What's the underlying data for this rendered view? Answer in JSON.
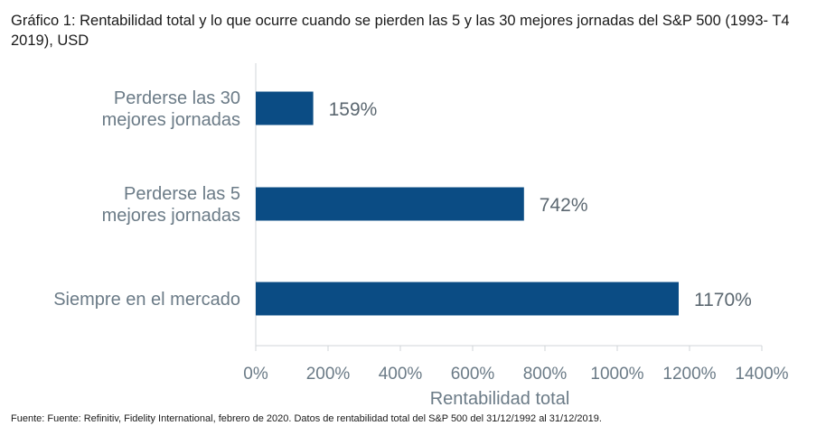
{
  "chart_data": {
    "type": "bar",
    "orientation": "horizontal",
    "title": "Gráfico 1: Rentabilidad total y lo que ocurre cuando se pierden las 5 y las 30 mejores jornadas del S&P 500 (1993- T4 2019), USD",
    "categories": [
      [
        "Perderse las 30",
        "mejores jornadas"
      ],
      [
        "Perderse las 5",
        "mejores jornadas"
      ],
      [
        "Siempre en el mercado"
      ]
    ],
    "values": [
      159,
      742,
      1170
    ],
    "value_labels": [
      "159%",
      "742%",
      "1170%"
    ],
    "xlabel": "Rentabilidad total",
    "xlim": [
      0,
      1400
    ],
    "xticks": [
      0,
      200,
      400,
      600,
      800,
      1000,
      1200,
      1400
    ],
    "xtick_labels": [
      "0%",
      "200%",
      "400%",
      "600%",
      "800%",
      "1000%",
      "1200%",
      "1400%"
    ],
    "grid": false,
    "legend": "none",
    "bar_color": "#0b4c84"
  },
  "footnote": "Fuente: Fuente: Refinitiv, Fidelity International, febrero de 2020. Datos de rentabilidad total del S&P 500 del 31/12/1992 al 31/12/2019."
}
